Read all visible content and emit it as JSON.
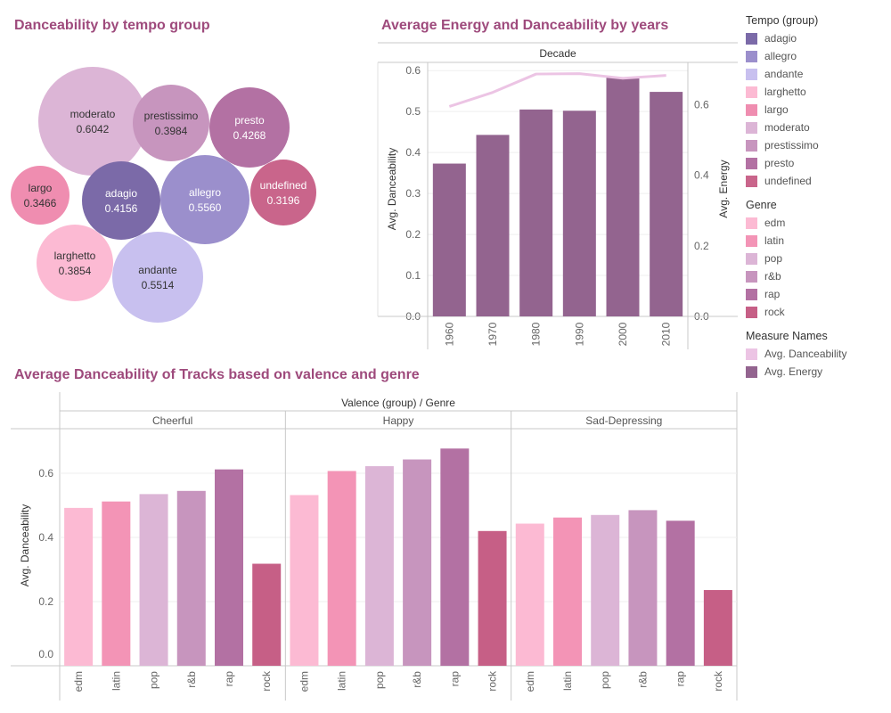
{
  "titles": {
    "bubble": "Danceability by tempo group",
    "decade": "Average Energy and Danceability by years",
    "valence": "Average Danceability of Tracks based on valence and genre"
  },
  "legend": {
    "tempo": {
      "title": "Tempo (group)",
      "items": [
        {
          "label": "adagio",
          "color": "#7b6aa8"
        },
        {
          "label": "allegro",
          "color": "#9b8fcc"
        },
        {
          "label": "andante",
          "color": "#c8c0ef"
        },
        {
          "label": "larghetto",
          "color": "#fcbad3"
        },
        {
          "label": "largo",
          "color": "#ef8db0"
        },
        {
          "label": "moderato",
          "color": "#dcb5d6"
        },
        {
          "label": "prestissimo",
          "color": "#c795be"
        },
        {
          "label": "presto",
          "color": "#b371a3"
        },
        {
          "label": "undefined",
          "color": "#c9658b"
        }
      ]
    },
    "genre": {
      "title": "Genre",
      "items": [
        {
          "label": "edm",
          "color": "#fcbad3"
        },
        {
          "label": "latin",
          "color": "#f394b6"
        },
        {
          "label": "pop",
          "color": "#dcb5d6"
        },
        {
          "label": "r&b",
          "color": "#c795be"
        },
        {
          "label": "rap",
          "color": "#b371a3"
        },
        {
          "label": "rock",
          "color": "#c65f86"
        }
      ]
    },
    "measures": {
      "title": "Measure Names",
      "items": [
        {
          "label": "Avg. Danceability",
          "color": "#ecc4e4"
        },
        {
          "label": "Avg. Energy",
          "color": "#93648f"
        }
      ]
    }
  },
  "chart_data": [
    {
      "type": "bubble",
      "title": "Danceability by tempo group",
      "bubbles": [
        {
          "label": "moderato",
          "value": "0.6042",
          "color": "#dcb5d6",
          "text_color": "#333333"
        },
        {
          "label": "prestissimo",
          "value": "0.3984",
          "color": "#c795be",
          "text_color": "#333333"
        },
        {
          "label": "presto",
          "value": "0.4268",
          "color": "#b371a3",
          "text_color": "#ffffff"
        },
        {
          "label": "largo",
          "value": "0.3466",
          "color": "#ef8db0",
          "text_color": "#333333"
        },
        {
          "label": "adagio",
          "value": "0.4156",
          "color": "#7b6aa8",
          "text_color": "#ffffff"
        },
        {
          "label": "allegro",
          "value": "0.5560",
          "color": "#9b8fcc",
          "text_color": "#ffffff"
        },
        {
          "label": "undefined",
          "value": "0.3196",
          "color": "#c9658b",
          "text_color": "#ffffff"
        },
        {
          "label": "larghetto",
          "value": "0.3854",
          "color": "#fcbad3",
          "text_color": "#333333"
        },
        {
          "label": "andante",
          "value": "0.5514",
          "color": "#c8c0ef",
          "text_color": "#333333"
        }
      ]
    },
    {
      "type": "bar",
      "title": "Average Energy and Danceability by years",
      "header": "Decade",
      "categories": [
        "1960",
        "1970",
        "1980",
        "1990",
        "2000",
        "2010"
      ],
      "series": [
        {
          "name": "Avg. Energy",
          "type": "bar",
          "axis": "left",
          "values": [
            0.373,
            0.443,
            0.505,
            0.502,
            0.583,
            0.548
          ],
          "color": "#93648f"
        },
        {
          "name": "Avg. Danceability",
          "type": "line",
          "axis": "right",
          "values": [
            0.595,
            0.635,
            0.687,
            0.688,
            0.675,
            0.683
          ],
          "color": "#ecc4e4"
        }
      ],
      "ylabel_left": "Avg. Danceability",
      "ylabel_right": "Avg. Energy",
      "yticks_left": [
        "0.0",
        "0.1",
        "0.2",
        "0.3",
        "0.4",
        "0.5",
        "0.6"
      ],
      "yticks_right": [
        "0.0",
        "0.2",
        "0.4",
        "0.6"
      ],
      "ylim_left": [
        0,
        0.62
      ],
      "ylim_right": [
        0,
        0.72
      ]
    },
    {
      "type": "bar",
      "title": "Average Danceability of Tracks based on valence and genre",
      "header": "Valence (group)  /  Genre",
      "ylabel": "Avg. Danceability",
      "yticks": [
        "0.0",
        "0.2",
        "0.4",
        "0.6"
      ],
      "ylim": [
        0,
        0.7
      ],
      "genres": [
        "edm",
        "latin",
        "pop",
        "r&b",
        "rap",
        "rock"
      ],
      "genre_colors": [
        "#fcbad3",
        "#f394b6",
        "#dcb5d6",
        "#c795be",
        "#b371a3",
        "#c65f86"
      ],
      "groups": [
        {
          "name": "Cheerful",
          "values": [
            0.492,
            0.512,
            0.535,
            0.545,
            0.612,
            0.318
          ]
        },
        {
          "name": "Happy",
          "values": [
            0.532,
            0.607,
            0.622,
            0.643,
            0.677,
            0.42
          ]
        },
        {
          "name": "Sad-Depressing",
          "values": [
            0.443,
            0.462,
            0.47,
            0.485,
            0.452,
            0.236
          ]
        }
      ]
    }
  ]
}
